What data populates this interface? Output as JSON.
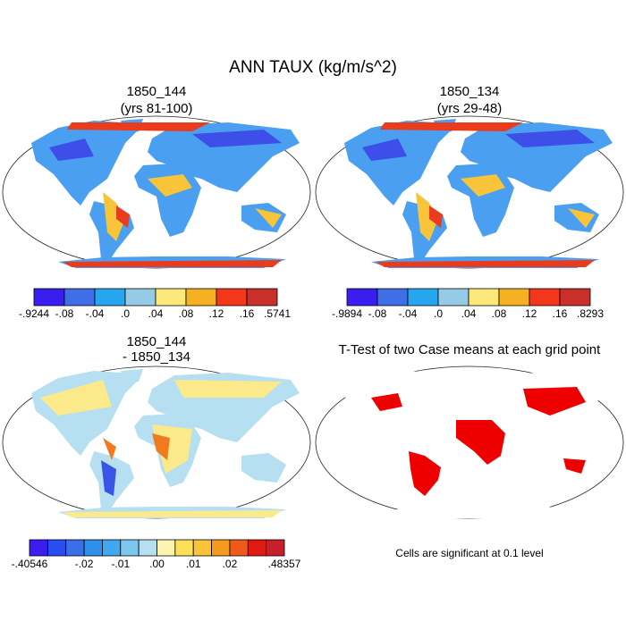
{
  "title": "ANN TAUX (kg/m/s^2)",
  "panels": [
    {
      "title": "1850_144",
      "subtitle": "(yrs 81-100)",
      "colorbar": {
        "colors": [
          "#3a1ef0",
          "#3f6ee6",
          "#25a6ee",
          "#96cbe8",
          "#fbe77a",
          "#f6b023",
          "#f2371a",
          "#c9302c"
        ],
        "labels": [
          "-.9244",
          "-.08",
          "-.04",
          ".0",
          ".04",
          ".08",
          ".12",
          ".16",
          ".5741"
        ]
      }
    },
    {
      "title": "1850_134",
      "subtitle": "(yrs 29-48)",
      "colorbar": {
        "colors": [
          "#3a1ef0",
          "#3f6ee6",
          "#25a6ee",
          "#96cbe8",
          "#fbe77a",
          "#f6b023",
          "#f2371a",
          "#c9302c"
        ],
        "labels": [
          "-.9894",
          "-.08",
          "-.04",
          ".0",
          ".04",
          ".08",
          ".12",
          ".16",
          ".8293"
        ]
      }
    },
    {
      "title": "1850_144",
      "subtitle": "- 1850_134",
      "colorbar": {
        "colors": [
          "#3a1ef0",
          "#2a4df0",
          "#3a6fe8",
          "#2f8fea",
          "#40a8ef",
          "#7cc6ef",
          "#b6dff2",
          "#fff3b0",
          "#fde05a",
          "#f9c33a",
          "#f59a1e",
          "#ef5a1a",
          "#e01a12",
          "#c8202a"
        ],
        "labels": [
          "-.40546",
          null,
          null,
          "-.02",
          null,
          "-.01",
          null,
          ".00",
          null,
          ".01",
          null,
          ".02",
          null,
          null,
          ".48357"
        ]
      }
    },
    {
      "title": "T-Test of two Case means at each grid point",
      "note": "Cells are significant at 0.1 level"
    }
  ]
}
